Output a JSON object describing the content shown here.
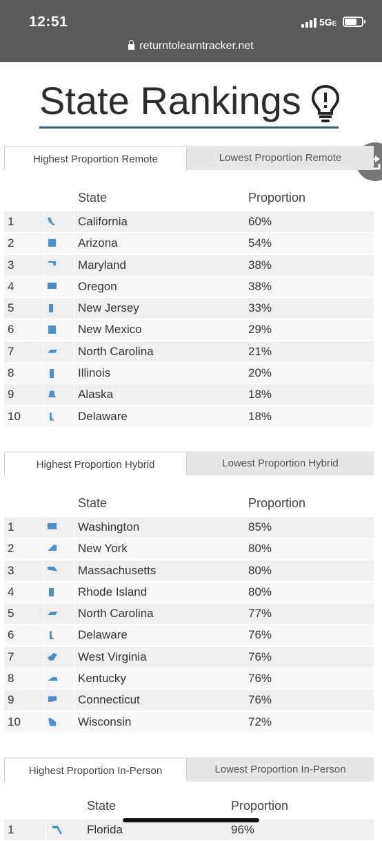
{
  "status_bar": {
    "time": "12:51",
    "network": "5G",
    "network_suffix": "E"
  },
  "browser": {
    "url": "returntolearntracker.net"
  },
  "page": {
    "title": "State Rankings",
    "title_icon": "lightbulb-icon",
    "share_icon": "share-icon"
  },
  "colors": {
    "accent": "#3b5b87",
    "state_shape": "#4a8fd0"
  },
  "sections": [
    {
      "tabs": [
        "Highest Proportion Remote",
        "Lowest Proportion Remote"
      ],
      "columns": [
        "State",
        "Proportion"
      ],
      "rows": [
        {
          "rank": "1",
          "state": "California",
          "proportion": "60%"
        },
        {
          "rank": "2",
          "state": "Arizona",
          "proportion": "54%"
        },
        {
          "rank": "3",
          "state": "Maryland",
          "proportion": "38%"
        },
        {
          "rank": "4",
          "state": "Oregon",
          "proportion": "38%"
        },
        {
          "rank": "5",
          "state": "New Jersey",
          "proportion": "33%"
        },
        {
          "rank": "6",
          "state": "New Mexico",
          "proportion": "29%"
        },
        {
          "rank": "7",
          "state": "North Carolina",
          "proportion": "21%"
        },
        {
          "rank": "8",
          "state": "Illinois",
          "proportion": "20%"
        },
        {
          "rank": "9",
          "state": "Alaska",
          "proportion": "18%"
        },
        {
          "rank": "10",
          "state": "Delaware",
          "proportion": "18%"
        }
      ]
    },
    {
      "tabs": [
        "Highest Proportion Hybrid",
        "Lowest Proportion Hybrid"
      ],
      "columns": [
        "State",
        "Proportion"
      ],
      "rows": [
        {
          "rank": "1",
          "state": "Washington",
          "proportion": "85%"
        },
        {
          "rank": "2",
          "state": "New York",
          "proportion": "80%"
        },
        {
          "rank": "3",
          "state": "Massachusetts",
          "proportion": "80%"
        },
        {
          "rank": "4",
          "state": "Rhode Island",
          "proportion": "80%"
        },
        {
          "rank": "5",
          "state": "North Carolina",
          "proportion": "77%"
        },
        {
          "rank": "6",
          "state": "Delaware",
          "proportion": "76%"
        },
        {
          "rank": "7",
          "state": "West Virginia",
          "proportion": "76%"
        },
        {
          "rank": "8",
          "state": "Kentucky",
          "proportion": "76%"
        },
        {
          "rank": "9",
          "state": "Connecticut",
          "proportion": "76%"
        },
        {
          "rank": "10",
          "state": "Wisconsin",
          "proportion": "72%"
        }
      ]
    },
    {
      "tabs": [
        "Highest Proportion In-Person",
        "Lowest Proportion In-Person"
      ],
      "columns": [
        "State",
        "Proportion"
      ],
      "rows": [
        {
          "rank": "1",
          "state": "Florida",
          "proportion": "96%"
        }
      ]
    }
  ]
}
